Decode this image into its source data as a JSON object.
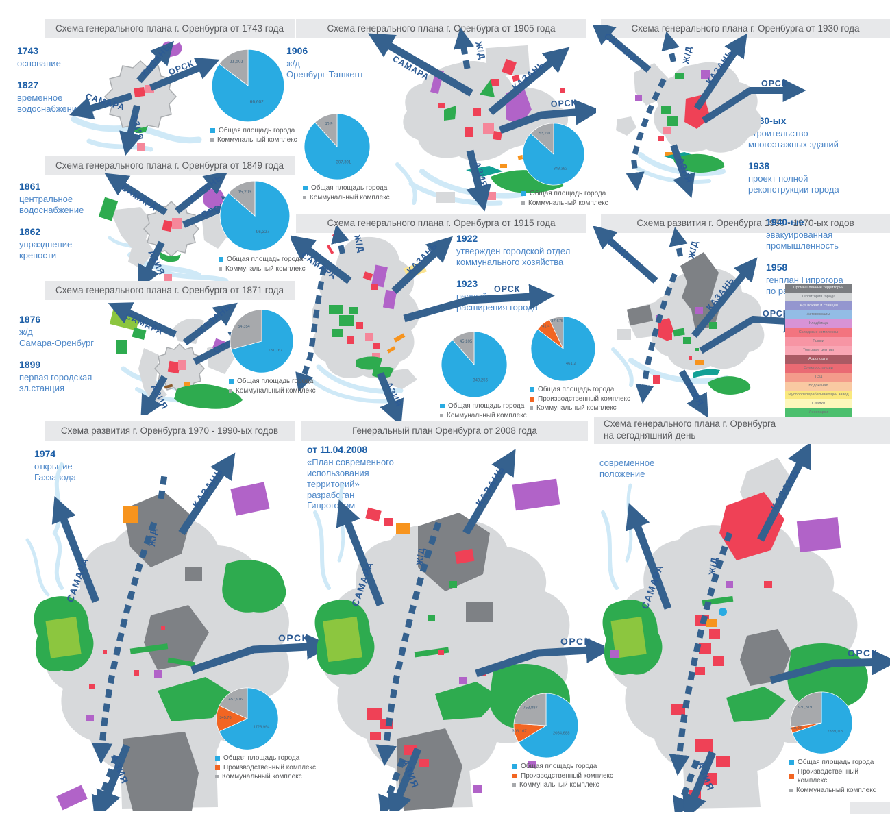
{
  "arrow_labels": {
    "samara": "САМАРА",
    "kazan": "КАЗАНЬ",
    "orsk": "ОРСК",
    "azia": "АЗИЯ",
    "zhd": "Ж/Д"
  },
  "panels": [
    {
      "title": "Схема генерального плана г. Оренбурга от 1743 года",
      "events": [
        {
          "year": "1743",
          "text": "основание"
        },
        {
          "year": "1827",
          "text": "временное\nводоснабжение"
        }
      ]
    },
    {
      "title": "Схема генерального плана г. Оренбурга от 1849 года",
      "events": [
        {
          "year": "1861",
          "text": "центральное\nводоснабжение"
        },
        {
          "year": "1862",
          "text": "упразднение\nкрепости"
        }
      ]
    },
    {
      "title": "Схема генерального плана г. Оренбурга от 1871 года",
      "events": [
        {
          "year": "1876",
          "text": "ж/д\nСамара-Оренбург"
        },
        {
          "year": "1899",
          "text": "первая городская\nэл.станция"
        }
      ]
    },
    {
      "title": "Схема генерального плана г. Оренбурга от 1905 года",
      "events": [
        {
          "year": "1906",
          "text": "ж/д\nОренбург-Ташкент"
        }
      ]
    },
    {
      "title": "Схема генерального плана г. Оренбурга от 1915 года",
      "events": [
        {
          "year": "1922",
          "text": "утвержден городской отдел\nкоммунального хозяйства"
        },
        {
          "year": "1923",
          "text": "первый проект\nрасширения города"
        }
      ]
    },
    {
      "title": "Схема генерального плана г. Оренбурга от 1930 года",
      "events": [
        {
          "year": "1930-ых",
          "text": "строительство\nмногоэтажных зданий"
        },
        {
          "year": "1938",
          "text": "проект полной\nреконструкции города"
        }
      ]
    },
    {
      "title": "Схема развития г. Оренбурга 1950 - 1970-ых годов",
      "events": [
        {
          "year": "1940-ые",
          "text": "эвакуированная\nпромышленность"
        },
        {
          "year": "1958",
          "text": "генплан Гипрогора\nпо развитию города"
        }
      ]
    },
    {
      "title": "Схема развития г. Оренбурга 1970 - 1990-ых годов",
      "events": [
        {
          "year": "1974",
          "text": "открытие\nГаззавода"
        }
      ]
    },
    {
      "title": "Генеральный план Оренбурга от 2008 года",
      "events": [
        {
          "year": "от 11.04.2008",
          "text": "«План современного\nиспользования\nтерриторий»\nразработан\nГипрогором"
        }
      ]
    },
    {
      "title": "Схема генерального плана г. Оренбурга\nна сегодняшний день",
      "events": [
        {
          "year": "",
          "text": "современное\nположение"
        }
      ]
    }
  ],
  "key_legend": {
    "rows": [
      {
        "label": "Промышленные территории",
        "color": "#7b7d81",
        "dark": true
      },
      {
        "label": "Территория города",
        "color": "#d3d5d7",
        "dark": false
      },
      {
        "label": "Ж/Д вокзал и станции",
        "color": "#9496cf",
        "dark": true
      },
      {
        "label": "Автовокзалы",
        "color": "#93bce5",
        "dark": false
      },
      {
        "label": "Кладбища",
        "color": "#d893d6",
        "dark": false
      },
      {
        "label": "Складские комплексы",
        "color": "#f3747f",
        "dark": false
      },
      {
        "label": "Рынки",
        "color": "#f795a4",
        "dark": false
      },
      {
        "label": "Торговые центры",
        "color": "#f9a6b4",
        "dark": false
      },
      {
        "label": "Аэропорты",
        "color": "#aa5a64",
        "dark": true
      },
      {
        "label": "Электростанции",
        "color": "#ea6a73",
        "dark": false
      },
      {
        "label": "ТЭЦ",
        "color": "#f49b8b",
        "dark": false
      },
      {
        "label": "Водоканал",
        "color": "#f9c9a2",
        "dark": false
      },
      {
        "label": "Мусороперерабатывающий завод",
        "color": "#fae97e",
        "dark": false
      },
      {
        "label": "Свалки",
        "color": "#fdf7bb",
        "dark": false
      },
      {
        "label": "Лесопарки",
        "color": "#4cbf6e",
        "dark": false
      }
    ]
  },
  "chart_data": [
    {
      "type": "pie",
      "panel": "1743",
      "legend_position": "bottom",
      "slices": [
        {
          "name": "Общая площадь города",
          "value": 66.602,
          "label": "66,602",
          "color": "#29abe2"
        },
        {
          "name": "Коммунальный комплекс",
          "value": 11.501,
          "label": "11,501",
          "color": "#a7a9ac"
        }
      ]
    },
    {
      "type": "pie",
      "panel": "1849",
      "legend_position": "bottom",
      "slices": [
        {
          "name": "Общая площадь города",
          "value": 96.327,
          "label": "96,327",
          "color": "#29abe2"
        },
        {
          "name": "Коммунальный комплекс",
          "value": 15.203,
          "label": "15,203",
          "color": "#a7a9ac"
        }
      ]
    },
    {
      "type": "pie",
      "panel": "1871",
      "legend_position": "bottom",
      "slices": [
        {
          "name": "Общая площадь города",
          "value": 131.767,
          "label": "131,767",
          "color": "#29abe2"
        },
        {
          "name": "Коммунальный комплекс",
          "value": 54.354,
          "label": "54,354",
          "color": "#a7a9ac"
        }
      ]
    },
    {
      "type": "pie",
      "panel": "1905",
      "legend_position": "bottom",
      "slices": [
        {
          "name": "Общая площадь города",
          "value": 307.391,
          "label": "307,391",
          "color": "#29abe2"
        },
        {
          "name": "Коммунальный комплекс",
          "value": 40.9,
          "label": "40,9",
          "color": "#a7a9ac"
        }
      ]
    },
    {
      "type": "pie",
      "panel": "1915",
      "legend_position": "bottom",
      "slices": [
        {
          "name": "Общая площадь города",
          "value": 349.256,
          "label": "349,256",
          "color": "#29abe2"
        },
        {
          "name": "Коммунальный комплекс",
          "value": 45.105,
          "label": "45,105",
          "color": "#a7a9ac"
        }
      ]
    },
    {
      "type": "pie",
      "panel": "1930",
      "legend_position": "bottom",
      "slices": [
        {
          "name": "Общая площадь города",
          "value": 348.382,
          "label": "348,382",
          "color": "#29abe2"
        },
        {
          "name": "Коммунальный комплекс",
          "value": 53.191,
          "label": "53,191",
          "color": "#a7a9ac"
        }
      ]
    },
    {
      "type": "pie",
      "panel": "1950-1970",
      "legend_position": "bottom",
      "slices": [
        {
          "name": "Общая площадь города",
          "value": 461.2,
          "label": "461,2",
          "color": "#29abe2"
        },
        {
          "name": "Производственный комплекс",
          "value": 41.4,
          "label": "41,4",
          "color": "#f26522"
        },
        {
          "name": "Коммунальный комплекс",
          "value": 37.675,
          "label": "37,675",
          "color": "#a7a9ac"
        }
      ]
    },
    {
      "type": "pie",
      "panel": "1970-1990",
      "legend_position": "bottom",
      "slices": [
        {
          "name": "Общая площадь города",
          "value": 1728.994,
          "label": "1728,994",
          "color": "#29abe2"
        },
        {
          "name": "Производственный комплекс",
          "value": 345.76,
          "label": "345,76",
          "color": "#f26522"
        },
        {
          "name": "Коммунальный комплекс",
          "value": 457.976,
          "label": "457,976",
          "color": "#a7a9ac"
        }
      ]
    },
    {
      "type": "pie",
      "panel": "2008",
      "legend_position": "bottom",
      "slices": [
        {
          "name": "Общая площадь города",
          "value": 2084.688,
          "label": "2084,688",
          "color": "#29abe2"
        },
        {
          "name": "Производственный комплекс",
          "value": 306.167,
          "label": "306,167",
          "color": "#f26522"
        },
        {
          "name": "Коммунальный комплекс",
          "value": 753.887,
          "label": "753,887",
          "color": "#a7a9ac"
        }
      ]
    },
    {
      "type": "pie",
      "panel": "today",
      "legend_position": "bottom",
      "slices": [
        {
          "name": "Общая площадь города",
          "value": 2389.115,
          "label": "2389,115",
          "color": "#29abe2"
        },
        {
          "name": "Производственный комплекс",
          "value": 110.98,
          "label": "110,98",
          "color": "#f26522"
        },
        {
          "name": "Коммунальный комплекс",
          "value": 930.319,
          "label": "930,319",
          "color": "#a7a9ac"
        }
      ]
    }
  ]
}
